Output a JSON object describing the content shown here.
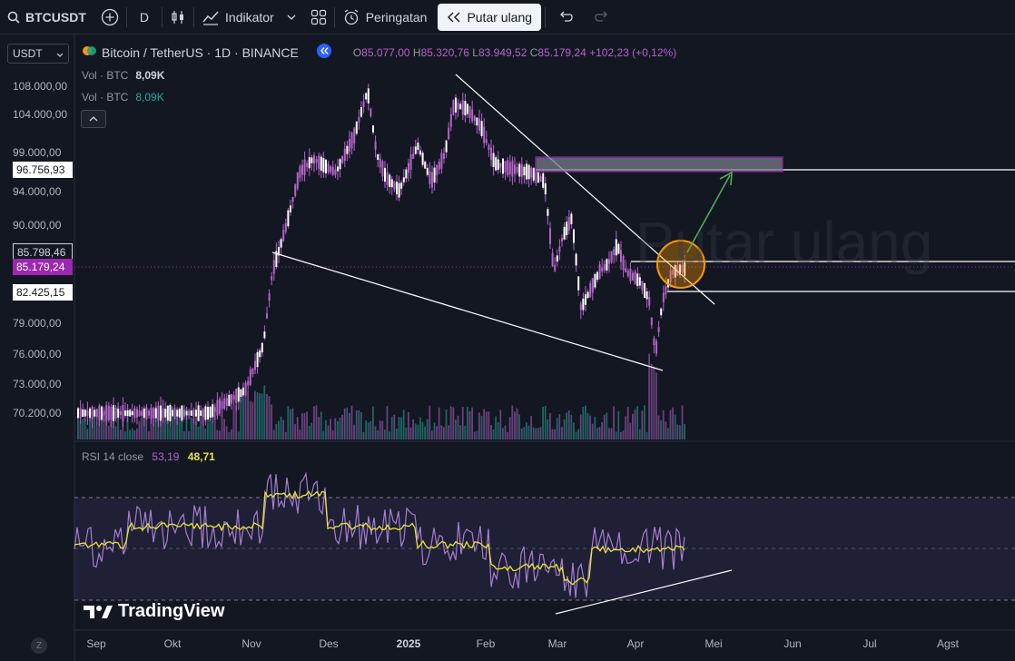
{
  "toolbar": {
    "symbol": "BTCUSDT",
    "interval": "D",
    "indicators_label": "Indikator",
    "alerts_label": "Peringatan",
    "replay_label": "Putar ulang"
  },
  "currency_select": "USDT",
  "legend": {
    "title": "Bitcoin / TetherUS · 1D · BINANCE",
    "open_key": "O",
    "open": "85.077,00",
    "high_key": "H",
    "high": "85.320,76",
    "low_key": "L",
    "low": "83.949,52",
    "close_key": "C",
    "close": "85.179,24",
    "change": "+102,23 (+0,12%)"
  },
  "volume_rows": [
    {
      "label": "Vol · BTC",
      "value": "8,09K"
    },
    {
      "label": "Vol · BTC",
      "value": "8,09K"
    }
  ],
  "price_axis": {
    "ticks": [
      "108.000,00",
      "104.000,00",
      "99.000,00",
      "94.000,00",
      "90.000,00",
      "79.000,00",
      "76.000,00",
      "73.000,00",
      "70.200,00"
    ],
    "tags": {
      "level_top": "96.756,93",
      "level_mid": "85.798,46",
      "current": "85.179,24",
      "level_low": "82.425,15"
    }
  },
  "rsi": {
    "label": "RSI 14 close",
    "value": "53,19",
    "ma_value": "48,71"
  },
  "time_axis": [
    "Sep",
    "Okt",
    "Nov",
    "Des",
    "2025",
    "Feb",
    "Mar",
    "Apr",
    "Mei",
    "Jun",
    "Jul",
    "Agst"
  ],
  "time_axis_bold": "2025",
  "zoom_button": "Z",
  "watermark": "TradingView",
  "background_watermark": "Putar ulang",
  "colors": {
    "background": "#131722",
    "candle": "#b364c9",
    "rsi_line": "#a57fcf",
    "rsi_ma": "#e6e633",
    "arrow": "#4caf50",
    "circle": "#ff9800",
    "zone": "#9c27b0"
  }
}
